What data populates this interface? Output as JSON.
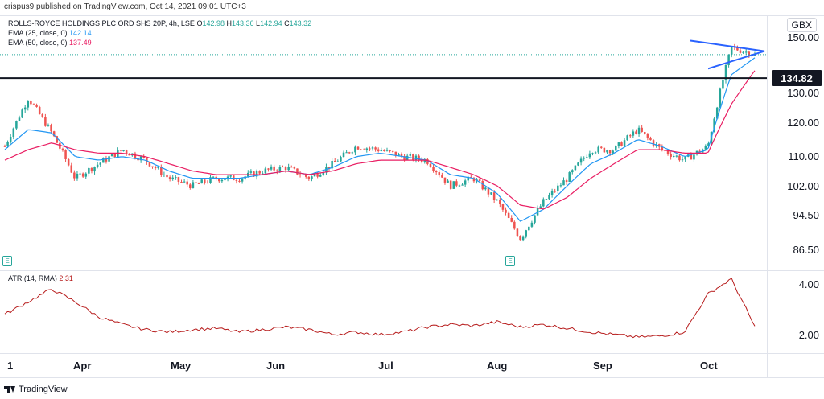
{
  "header": {
    "publisher": "crispus9 published on TradingView.com, Oct 14, 2021 09:01 UTC+3"
  },
  "legend": {
    "symbol": "ROLLS-ROYCE HOLDINGS PLC ORD SHS 20P, 4h, LSE",
    "ohlc": [
      {
        "key": "O",
        "value": "142.98"
      },
      {
        "key": "H",
        "value": "143.36"
      },
      {
        "key": "L",
        "value": "142.94"
      },
      {
        "key": "C",
        "value": "143.32"
      }
    ],
    "ema25_label": "EMA (25, close, 0)",
    "ema25_value": "142.14",
    "ema50_label": "EMA (50, close, 0)",
    "ema50_value": "137.49",
    "atr_label": "ATR (14, RMA)",
    "atr_value": "2.31"
  },
  "currency": "GBX",
  "price_axis_ticks": [
    "150.00",
    "130.00",
    "120.00",
    "110.00",
    "102.00",
    "94.50",
    "86.50"
  ],
  "horizontal_level": {
    "label": "134.82",
    "value": 134.82
  },
  "atr_axis_ticks": [
    "4.00",
    "2.00"
  ],
  "time_axis_labels": [
    "1",
    "Apr",
    "May",
    "Jun",
    "Jul",
    "Aug",
    "Sep",
    "Oct"
  ],
  "event_markers": [
    "E",
    "E"
  ],
  "footer": {
    "brand": "TradingView"
  },
  "colors": {
    "up": "#26a69a",
    "down": "#ef5350",
    "ema25": "#2196f3",
    "ema50": "#e91e63",
    "atr": "#b71c1c",
    "triangle": "#2962ff",
    "level": "#131722"
  },
  "chart_data": [
    {
      "type": "candlestick",
      "title": "ROLLS-ROYCE HOLDINGS PLC ORD SHS 20P, 4h, LSE",
      "scale": "log",
      "ylim": [
        84,
        153
      ],
      "x": [
        "Mar 1",
        "Mar 8",
        "Mar 15",
        "Mar 22",
        "Mar 29",
        "Apr 5",
        "Apr 12",
        "Apr 19",
        "Apr 26",
        "May 3",
        "May 10",
        "May 17",
        "May 24",
        "May 31",
        "Jun 7",
        "Jun 14",
        "Jun 21",
        "Jun 28",
        "Jul 5",
        "Jul 12",
        "Jul 19",
        "Jul 26",
        "Aug 2",
        "Aug 9",
        "Aug 16",
        "Aug 23",
        "Aug 30",
        "Sep 6",
        "Sep 13",
        "Sep 20",
        "Sep 27",
        "Oct 4",
        "Oct 11"
      ],
      "series": [
        {
          "name": "Price",
          "values": [
            113,
            128,
            117,
            104,
            108,
            112,
            109,
            104,
            102,
            104,
            104,
            106,
            107,
            104,
            108,
            113,
            112,
            110,
            109,
            102,
            104,
            98,
            89,
            98,
            104,
            112,
            112,
            118,
            112,
            109,
            113,
            146,
            143.32
          ]
        },
        {
          "name": "EMA (25, close, 0)",
          "values": [
            112,
            118,
            117,
            110,
            109,
            110,
            109,
            106,
            104,
            104,
            104,
            105,
            106,
            105,
            107,
            110,
            111,
            110,
            109,
            105,
            104,
            100,
            93,
            96,
            102,
            108,
            111,
            115,
            113,
            110,
            112,
            136,
            142.14
          ]
        },
        {
          "name": "EMA (50, close, 0)",
          "values": [
            109,
            112,
            114,
            112,
            111,
            111,
            110,
            108,
            106,
            105,
            105,
            105,
            106,
            105,
            106,
            108,
            109,
            109,
            109,
            107,
            105,
            102,
            97,
            96,
            99,
            104,
            108,
            112,
            112,
            111,
            111,
            126,
            137.49
          ]
        }
      ],
      "annotations": [
        "Symmetrical triangle near 145-148",
        "Horizontal level 134.82"
      ]
    },
    {
      "type": "line",
      "title": "ATR (14, RMA)",
      "ylim": [
        1.4,
        4.6
      ],
      "x": [
        "Mar 1",
        "Mar 8",
        "Mar 15",
        "Mar 22",
        "Mar 29",
        "Apr 5",
        "Apr 12",
        "Apr 19",
        "Apr 26",
        "May 3",
        "May 10",
        "May 17",
        "May 24",
        "May 31",
        "Jun 7",
        "Jun 14",
        "Jun 21",
        "Jun 28",
        "Jul 5",
        "Jul 12",
        "Jul 19",
        "Jul 26",
        "Aug 2",
        "Aug 9",
        "Aug 16",
        "Aug 23",
        "Aug 30",
        "Sep 6",
        "Sep 13",
        "Sep 20",
        "Sep 27",
        "Oct 4",
        "Oct 11"
      ],
      "series": [
        {
          "name": "ATR (14, RMA)",
          "values": [
            2.8,
            3.3,
            3.8,
            3.3,
            2.7,
            2.4,
            2.2,
            2.1,
            2.2,
            2.25,
            2.1,
            2.2,
            2.3,
            2.2,
            2.0,
            2.1,
            2.0,
            2.1,
            2.3,
            2.4,
            2.35,
            2.5,
            2.3,
            2.4,
            2.25,
            2.1,
            2.0,
            1.9,
            1.95,
            2.1,
            3.6,
            4.2,
            2.31
          ]
        }
      ]
    }
  ]
}
